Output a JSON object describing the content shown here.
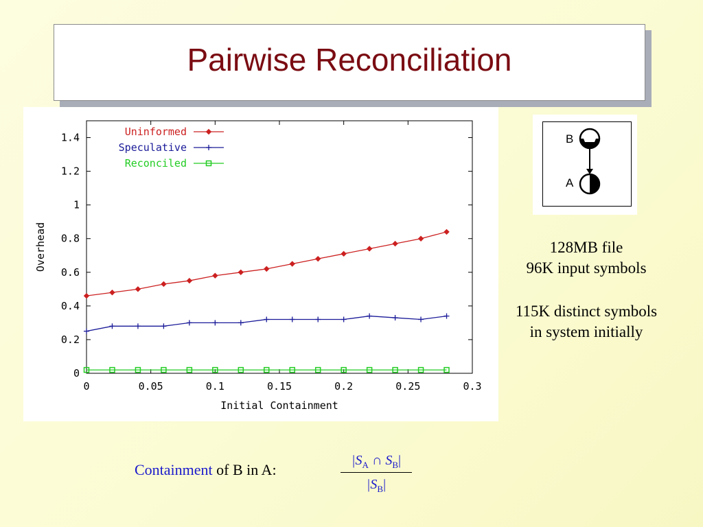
{
  "slide": {
    "title": "Pairwise Reconciliation"
  },
  "diagram": {
    "node_top": "B",
    "node_bottom": "A"
  },
  "info": {
    "line1": "128MB file",
    "line2": "96K input symbols",
    "line3": "115K distinct symbols",
    "line4": "in system initially"
  },
  "formula": {
    "term": "Containment",
    "rest": " of B in A:",
    "numerator_open": "|S",
    "numerator_sub1": "A",
    "numerator_cap": " ∩ S",
    "numerator_sub2": "B",
    "numerator_close": "|",
    "denominator_open": "|S",
    "denominator_sub": "B",
    "denominator_close": "|"
  },
  "chart_data": {
    "type": "line",
    "xlabel": "Initial Containment",
    "ylabel": "Overhead",
    "xlim": [
      0,
      0.3
    ],
    "ylim": [
      0,
      1.5
    ],
    "xticks": [
      "0",
      "0.05",
      "0.1",
      "0.15",
      "0.2",
      "0.25",
      "0.3"
    ],
    "yticks": [
      "0",
      "0.2",
      "0.4",
      "0.6",
      "0.8",
      "1",
      "1.2",
      "1.4"
    ],
    "legend_position": "top-left",
    "grid": false,
    "x": [
      0,
      0.02,
      0.04,
      0.06,
      0.08,
      0.1,
      0.12,
      0.14,
      0.16,
      0.18,
      0.2,
      0.22,
      0.24,
      0.26,
      0.28
    ],
    "series": [
      {
        "name": "Uninformed",
        "color": "#cc2020",
        "marker": "diamond",
        "values": [
          0.46,
          0.48,
          0.5,
          0.53,
          0.55,
          0.58,
          0.6,
          0.62,
          0.65,
          0.68,
          0.71,
          0.74,
          0.77,
          0.8,
          0.84
        ]
      },
      {
        "name": "Speculative",
        "color": "#1a1a99",
        "marker": "plus",
        "values": [
          0.25,
          0.28,
          0.28,
          0.28,
          0.3,
          0.3,
          0.3,
          0.32,
          0.32,
          0.32,
          0.32,
          0.34,
          0.33,
          0.32,
          0.34
        ]
      },
      {
        "name": "Reconciled",
        "color": "#22cc22",
        "marker": "square",
        "values": [
          0.02,
          0.02,
          0.02,
          0.02,
          0.02,
          0.02,
          0.02,
          0.02,
          0.02,
          0.02,
          0.02,
          0.02,
          0.02,
          0.02,
          0.02
        ]
      }
    ]
  }
}
